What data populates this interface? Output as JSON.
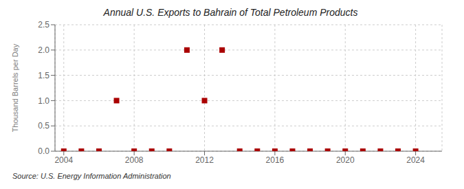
{
  "chart_data": {
    "type": "scatter",
    "title": "Annual U.S. Exports to Bahrain of Total Petroleum Products",
    "ylabel": "Thousand Barrels per Day",
    "annotation": "Source: U.S. Energy Information Administration",
    "x": [
      2004,
      2005,
      2006,
      2007,
      2008,
      2009,
      2010,
      2011,
      2012,
      2013,
      2014,
      2015,
      2016,
      2017,
      2018,
      2019,
      2020,
      2021,
      2022,
      2023,
      2024
    ],
    "values": [
      0.0,
      0.0,
      0.0,
      1.0,
      0.0,
      0.0,
      0.0,
      2.0,
      1.0,
      2.0,
      0.0,
      0.0,
      0.0,
      0.0,
      0.0,
      0.0,
      0.0,
      0.0,
      0.0,
      0.0,
      0.0
    ],
    "color": "#aa0000",
    "marker": "square",
    "xlim": [
      2003.5,
      2025.5
    ],
    "xticks": [
      2004,
      2008,
      2012,
      2016,
      2020,
      2024
    ],
    "ylim": [
      0.0,
      2.5
    ],
    "yticks": [
      {
        "value": 0.0,
        "label": "0.0"
      },
      0.5,
      {
        "value": 1.0,
        "label": "1.0"
      },
      1.5,
      {
        "value": 2.0,
        "label": "2.0"
      },
      2.5
    ],
    "grid": true
  }
}
